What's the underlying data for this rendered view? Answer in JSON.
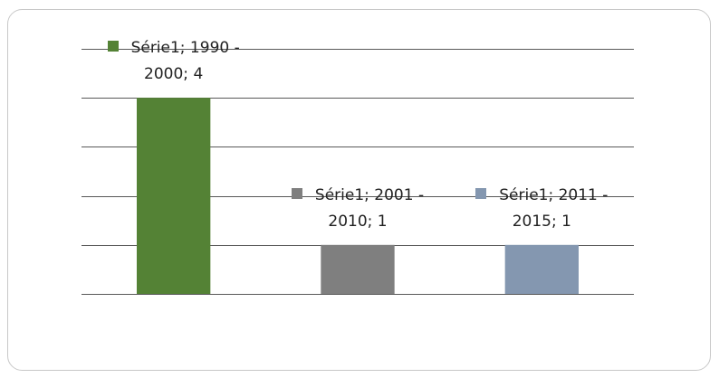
{
  "chart_data": {
    "type": "bar",
    "series": [
      {
        "name": "Série1",
        "colors": [
          "#548235",
          "#7f7f7f",
          "#8497b0"
        ],
        "values": [
          4,
          1,
          1
        ],
        "value_labels": [
          "Série1; 1990 - 2000; 4",
          "Série1; 2001 - 2010; 1",
          "Série1; 2011 - 2015; 1"
        ]
      }
    ],
    "ylim": [
      0,
      5
    ],
    "yticks": [
      0,
      1,
      2,
      3,
      4,
      5
    ],
    "grid": true
  }
}
